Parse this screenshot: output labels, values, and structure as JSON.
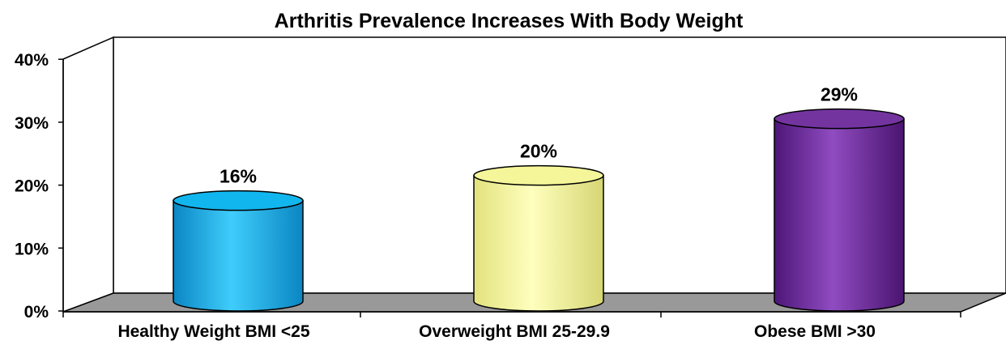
{
  "chart_data": {
    "type": "bar",
    "title": "Arthritis Prevalence Increases With Body Weight",
    "categories": [
      "Healthy Weight BMI <25",
      "Overweight BMI 25-29.9",
      "Obese BMI >30"
    ],
    "values": [
      16,
      20,
      29
    ],
    "value_labels": [
      "16%",
      "20%",
      "29%"
    ],
    "ylim": [
      0,
      40
    ],
    "yticks": [
      0,
      10,
      20,
      30,
      40
    ],
    "ytick_labels": [
      "0%",
      "10%",
      "20%",
      "30%",
      "40%"
    ],
    "xlabel": "",
    "ylabel": "",
    "grid": false,
    "bar_shape": "3d-cylinder",
    "colors": [
      "#12b6ee",
      "#f5f59a",
      "#7434a0"
    ]
  }
}
